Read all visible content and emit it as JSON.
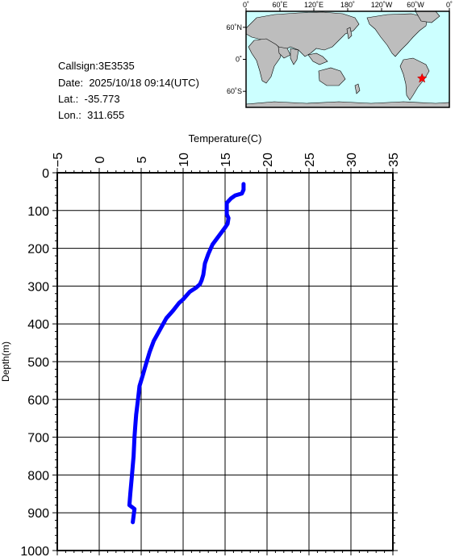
{
  "station": {
    "callsign_label": "Callsign:",
    "callsign": "3E3535",
    "date_label": "Date:",
    "date": "2025/10/18 09:14(UTC)",
    "lat_label": "Lat.:",
    "lat": "-35.773",
    "lon_label": "Lon.:",
    "lon": "311.655"
  },
  "map": {
    "lon_labels": [
      "0˚",
      "60˚E",
      "120˚E",
      "180˚",
      "120˚W",
      "60˚W",
      "0˚"
    ],
    "lat_labels": [
      "60˚N",
      "0˚",
      "60˚S"
    ],
    "ocean_color": "#ccffff",
    "land_color": "#bdbdbd",
    "marker_color": "#ff0000",
    "marker_icon": "star-icon",
    "marker_lon": 311.655,
    "marker_lat": -35.773
  },
  "chart_data": {
    "type": "line",
    "xlabel": "Temperature(C)",
    "ylabel": "Depth(m)",
    "xlim": [
      -5,
      35
    ],
    "ylim": [
      1000,
      0
    ],
    "x_axis_position": "top",
    "x_ticks": [
      "-5",
      "0",
      "5",
      "10",
      "15",
      "20",
      "25",
      "30",
      "35"
    ],
    "y_ticks": [
      "0",
      "100",
      "200",
      "300",
      "400",
      "500",
      "600",
      "700",
      "800",
      "900",
      "1000"
    ],
    "grid": true,
    "line_color": "#0000ff",
    "series": [
      {
        "x": [
          17.2,
          17.2,
          17.0,
          16.2,
          15.7,
          15.2,
          15.2,
          15.4,
          15.3,
          15.0,
          14.5,
          13.5,
          13.0,
          12.6,
          12.4,
          12.2,
          12.0,
          11.5,
          10.8,
          10.0,
          9.5,
          8.8,
          8.0,
          7.5,
          7.0,
          6.5,
          6.0,
          5.6,
          5.2,
          4.8,
          4.6,
          4.4,
          4.3,
          4.2,
          4.1,
          3.9,
          3.7,
          3.6,
          4.2,
          4.0
        ],
        "y": [
          30,
          45,
          55,
          60,
          68,
          80,
          110,
          120,
          135,
          145,
          160,
          190,
          215,
          240,
          270,
          285,
          295,
          305,
          315,
          335,
          345,
          365,
          385,
          405,
          425,
          445,
          475,
          505,
          535,
          565,
          605,
          640,
          670,
          700,
          750,
          800,
          850,
          880,
          890,
          925
        ]
      }
    ]
  }
}
